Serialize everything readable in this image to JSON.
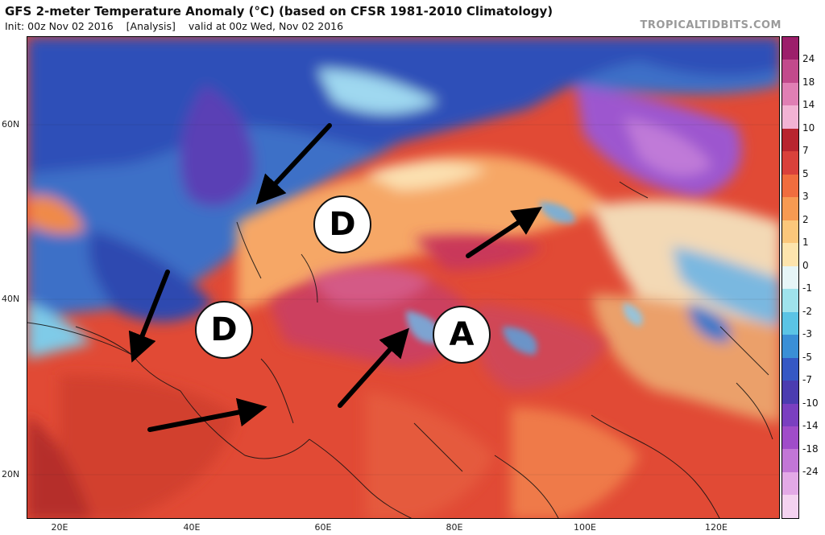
{
  "header": {
    "title": "GFS 2-meter Temperature Anomaly (°C) (based on CFSR 1981-2010 Climatology)",
    "init": "Init: 00z Nov 02 2016",
    "analysis": "[Analysis]",
    "valid": "valid at 00z Wed, Nov 02 2016",
    "source": "TROPICALTIDBITS.COM"
  },
  "map": {
    "lat_labels": [
      "60N",
      "40N",
      "20N"
    ],
    "lon_labels": [
      "20E",
      "40E",
      "60E",
      "80E",
      "100E",
      "120E"
    ],
    "annotations": {
      "d_north": "D",
      "d_south": "D",
      "a_east": "A"
    },
    "arrow_count": 5
  },
  "colorbar": {
    "labels": [
      "24",
      "18",
      "14",
      "10",
      "7",
      "5",
      "3",
      "2",
      "1",
      "0",
      "-1",
      "-2",
      "-3",
      "-5",
      "-7",
      "-10",
      "-14",
      "-18",
      "-24"
    ],
    "colors": [
      "#9c1f6b",
      "#c24a8c",
      "#e07fb4",
      "#f2b3d4",
      "#b8252f",
      "#d9413b",
      "#f06d3e",
      "#f79a52",
      "#fbc77b",
      "#fde4ad",
      "#e6f5f7",
      "#9fe3ec",
      "#5bc4e5",
      "#3a8fd6",
      "#3558c4",
      "#4b3cb0",
      "#7a3fc0",
      "#a04cc9",
      "#c276d6",
      "#e3a9e6",
      "#f4d2f0"
    ],
    "accent_color": "#9c1f6b"
  }
}
